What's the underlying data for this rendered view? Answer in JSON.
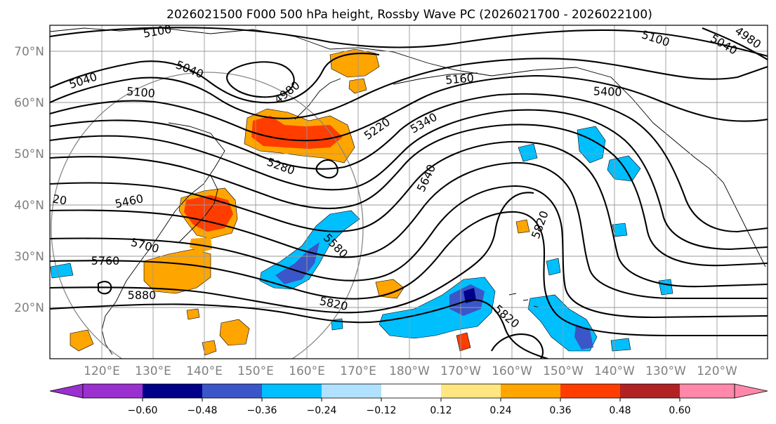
{
  "title": "2026021500 F000 500 hPa height, Rossby Wave PC (2026021700 - 2026022100)",
  "lat_labels": [
    "70°N",
    "60°N",
    "50°N",
    "40°N",
    "30°N",
    "20°N"
  ],
  "lon_labels": [
    "120°E",
    "130°E",
    "140°E",
    "150°E",
    "160°E",
    "170°E",
    "180°W",
    "170°W",
    "160°W",
    "150°W",
    "140°W",
    "130°W",
    "120°W"
  ],
  "colorbar": {
    "ticks": [
      "−0.60",
      "−0.48",
      "−0.36",
      "−0.24",
      "−0.12",
      "0.12",
      "0.24",
      "0.36",
      "0.48",
      "0.60"
    ],
    "colors": [
      "#9b30d0",
      "#00008b",
      "#3a56c8",
      "#00bfff",
      "#b0e2ff",
      "#ffffff",
      "#ffe680",
      "#ffa500",
      "#ff3d00",
      "#b22222",
      "#ff88aa"
    ]
  },
  "contour_labels": [
    "5100",
    "5040",
    "5040",
    "5100",
    "4980",
    "5160",
    "5400",
    "5220",
    "5340",
    "5280",
    "5460",
    "5700",
    "5760",
    "5880",
    "5580",
    "5640",
    "5820",
    "5820",
    "5820",
    "5100",
    "5040",
    "4980",
    "20"
  ],
  "chart_data": {
    "type": "map",
    "title": "2026021500 F000 500 hPa height, Rossby Wave PC (2026021700 - 2026022100)",
    "field": "500 hPa geopotential height contours with Rossby Wave PC shading",
    "lat_range": [
      10,
      75
    ],
    "lon_range": [
      "110°E",
      "110°W"
    ],
    "contour_levels_labeled": [
      4980,
      5040,
      5100,
      5160,
      5220,
      5280,
      5340,
      5400,
      5460,
      5580,
      5640,
      5700,
      5760,
      5820,
      5880
    ],
    "colorbar_levels": [
      -0.6,
      -0.48,
      -0.36,
      -0.24,
      -0.12,
      0.12,
      0.24,
      0.36,
      0.48,
      0.6
    ]
  }
}
